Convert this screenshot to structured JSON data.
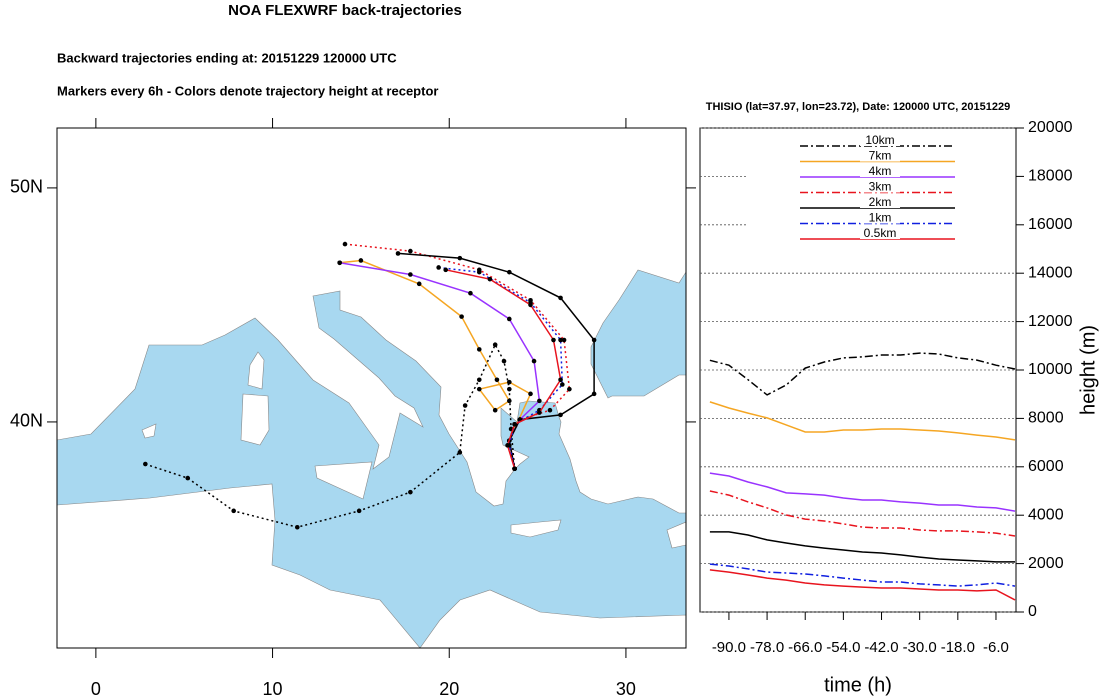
{
  "chart_data": [
    {
      "type": "map",
      "title": "NOA FLEXWRF back-trajectories",
      "subtitle": [
        "Backward trajectories ending at: 20151229  120000 UTC",
        "Markers every 6h - Colors denote trajectory height at receptor"
      ],
      "xlim": [
        -2.2,
        33.4
      ],
      "ylim": [
        30.34,
        52.56
      ],
      "xticks": [
        0,
        10,
        20,
        30
      ],
      "yticks": [
        {
          "value": 40,
          "label": "40N"
        },
        {
          "value": 50,
          "label": "50N"
        }
      ],
      "markers": true,
      "series": [
        {
          "color": "#000000",
          "dash": "dotted",
          "x": [
            2.8,
            5.2,
            7.8,
            11.4,
            14.9,
            17.8,
            20.6,
            20.9,
            21.7,
            22.6,
            23.1,
            23.4,
            23.5,
            23.7
          ],
          "y": [
            38.2,
            37.6,
            36.2,
            35.5,
            36.2,
            37.0,
            38.7,
            40.7,
            41.8,
            43.3,
            42.6,
            41.4,
            39.7,
            38.0
          ]
        },
        {
          "color": "#f5a623",
          "dash": "solid",
          "x": [
            13.8,
            15.0,
            18.3,
            20.7,
            21.7,
            22.7,
            23.4,
            22.6,
            21.7,
            23.4,
            24.6,
            23.4,
            23.7
          ],
          "y": [
            46.8,
            46.9,
            45.9,
            44.5,
            43.1,
            41.8,
            40.9,
            40.5,
            41.4,
            41.7,
            41.2,
            39.2,
            38.0
          ]
        },
        {
          "color": "#9933ff",
          "dash": "solid",
          "x": [
            13.8,
            17.8,
            21.2,
            23.4,
            24.8,
            25.1,
            24.0,
            23.4,
            23.7
          ],
          "y": [
            46.8,
            46.3,
            45.5,
            44.4,
            42.6,
            40.9,
            40.1,
            39.2,
            38.0
          ]
        },
        {
          "color": "#e8141e",
          "dash": "dotted",
          "x": [
            14.1,
            17.8,
            21.7,
            24.6,
            26.5,
            26.8,
            25.7,
            24.0,
            23.4,
            23.7
          ],
          "y": [
            47.6,
            47.3,
            46.5,
            45.2,
            43.5,
            41.4,
            40.5,
            40.1,
            39.2,
            38.0
          ]
        },
        {
          "color": "#000000",
          "dash": "solid",
          "x": [
            17.1,
            20.6,
            23.4,
            26.3,
            28.2,
            28.2,
            26.3,
            24.0,
            23.4,
            23.7
          ],
          "y": [
            47.2,
            47.0,
            46.4,
            45.3,
            43.5,
            41.2,
            40.3,
            40.1,
            39.2,
            38.0
          ]
        },
        {
          "color": "#1020e0",
          "dash": "dotted",
          "x": [
            19.4,
            21.7,
            24.6,
            26.3,
            26.4,
            25.1,
            23.7,
            23.4,
            23.7
          ],
          "y": [
            46.6,
            46.4,
            45.1,
            43.5,
            41.6,
            40.5,
            39.9,
            39.0,
            38.0
          ]
        },
        {
          "color": "#e8141e",
          "dash": "solid",
          "x": [
            19.8,
            22.3,
            24.6,
            25.9,
            26.3,
            25.1,
            23.7,
            23.3,
            23.7
          ],
          "y": [
            46.5,
            46.1,
            45.0,
            43.5,
            41.8,
            40.4,
            39.9,
            39.0,
            38.0
          ]
        }
      ]
    },
    {
      "type": "line",
      "title": "THISIO (lat=37.97,  lon=23.72), Date: 120000 UTC, 20151229",
      "xlabel": "time (h)",
      "ylabel": "height (m)",
      "xlim": [
        -99.1,
        0.3
      ],
      "ylim": [
        0,
        20000
      ],
      "xticks": [
        {
          "value": -90,
          "label": "-90.0"
        },
        {
          "value": -78,
          "label": "-78.0"
        },
        {
          "value": -66,
          "label": "-66.0"
        },
        {
          "value": -54,
          "label": "-54.0"
        },
        {
          "value": -42,
          "label": "-42.0"
        },
        {
          "value": -30,
          "label": "-30.0"
        },
        {
          "value": -18,
          "label": "-18.0"
        },
        {
          "value": -6,
          "label": "-6.0"
        }
      ],
      "yticks": [
        0,
        2000,
        4000,
        6000,
        8000,
        10000,
        12000,
        14000,
        16000,
        18000,
        20000
      ],
      "grid": true,
      "legend": "top",
      "x": [
        -96,
        -90,
        -84,
        -78,
        -72,
        -66,
        -60,
        -54,
        -48,
        -42,
        -36,
        -30,
        -24,
        -18,
        -12,
        -6,
        0
      ],
      "series": [
        {
          "name": "10km",
          "color": "#000000",
          "dash": "dash-dot",
          "values": [
            10400,
            10200,
            9600,
            8970,
            9380,
            10080,
            10330,
            10500,
            10540,
            10620,
            10620,
            10700,
            10660,
            10500,
            10410,
            10200,
            10040
          ]
        },
        {
          "name": "7km",
          "color": "#f5a623",
          "dash": "solid",
          "values": [
            8680,
            8430,
            8220,
            8020,
            7730,
            7440,
            7440,
            7520,
            7520,
            7560,
            7560,
            7520,
            7480,
            7400,
            7310,
            7230,
            7110
          ]
        },
        {
          "name": "4km",
          "color": "#9933ff",
          "dash": "solid",
          "values": [
            5740,
            5620,
            5370,
            5170,
            4920,
            4880,
            4830,
            4710,
            4630,
            4630,
            4550,
            4500,
            4420,
            4420,
            4340,
            4300,
            4170
          ]
        },
        {
          "name": "3km",
          "color": "#e8141e",
          "dash": "dash-dot",
          "values": [
            5000,
            4830,
            4550,
            4300,
            4010,
            3840,
            3760,
            3640,
            3510,
            3470,
            3470,
            3390,
            3350,
            3350,
            3310,
            3260,
            3140
          ]
        },
        {
          "name": "2km",
          "color": "#000000",
          "dash": "solid",
          "values": [
            3310,
            3310,
            3180,
            2980,
            2850,
            2730,
            2640,
            2560,
            2480,
            2440,
            2360,
            2270,
            2190,
            2150,
            2110,
            2070,
            2070
          ]
        },
        {
          "name": "1km",
          "color": "#1020e0",
          "dash": "dash-dot",
          "values": [
            1980,
            1900,
            1780,
            1650,
            1610,
            1570,
            1490,
            1400,
            1320,
            1240,
            1240,
            1160,
            1120,
            1070,
            1120,
            1200,
            1070
          ]
        },
        {
          "name": "0.5km",
          "color": "#e8141e",
          "dash": "solid",
          "values": [
            1740,
            1650,
            1530,
            1400,
            1320,
            1200,
            1120,
            1070,
            1030,
            990,
            990,
            950,
            910,
            910,
            870,
            910,
            500
          ]
        }
      ]
    }
  ]
}
